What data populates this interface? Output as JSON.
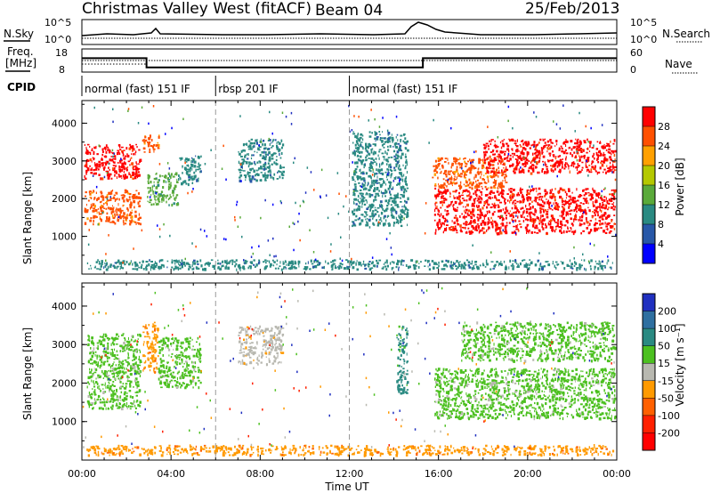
{
  "header": {
    "title": "Christmas Valley West (fitACF)",
    "beam": "Beam 04",
    "date": "25/Feb/2013"
  },
  "panels": {
    "sky_label": "N.Sky",
    "search_label": "N.Search",
    "freq_label_1": "Freq.",
    "freq_label_2": "[MHz]",
    "nave_label": "Nave",
    "cpid_label": "CPID",
    "sky_ticks_left": [
      "10^5",
      "10^0"
    ],
    "sky_ticks_right": [
      "10^5",
      "10^0"
    ],
    "freq_ticks": [
      "18",
      "8"
    ],
    "nave_ticks": [
      "60",
      "0"
    ]
  },
  "cpid": [
    {
      "label": "normal (fast) 151 IF",
      "start": 0,
      "end": 6
    },
    {
      "label": "rbsp 201 IF",
      "start": 6,
      "end": 12
    },
    {
      "label": "normal (fast) 151 IF",
      "start": 12,
      "end": 24
    }
  ],
  "colorbars": {
    "power": {
      "label": "Power [dB]",
      "ticks": [
        "28",
        "24",
        "20",
        "16",
        "12",
        "8",
        "4"
      ],
      "colors": [
        "#0000ff",
        "#2858a8",
        "#2a8a82",
        "#5aaa3a",
        "#b4c800",
        "#ffa000",
        "#ff5000",
        "#ff0000"
      ]
    },
    "velocity": {
      "label": "Velocity [m s⁻¹]",
      "ticks": [
        "200",
        "100",
        "50",
        "15",
        "-15",
        "-50",
        "-100",
        "-200"
      ],
      "colors": [
        "#2030c0",
        "#2e6fa0",
        "#2a8a82",
        "#4cc020",
        "#b8b8b0",
        "#ff9a00",
        "#ff6000",
        "#ff2000",
        "#ff0000"
      ]
    }
  },
  "axes": {
    "y_label": "Slant Range [km]",
    "y_ticks": [
      "4000",
      "3000",
      "2000",
      "1000"
    ],
    "x_label": "Time UT",
    "x_ticks": [
      "00:00",
      "04:00",
      "08:00",
      "12:00",
      "16:00",
      "20:00",
      "00:00"
    ]
  },
  "chart_data": {
    "type": "heatmap",
    "x_unit": "hours UT",
    "y_unit": "km",
    "xlim": [
      0,
      24
    ],
    "ylim": [
      0,
      4600
    ],
    "freq_mhz": [
      {
        "start": 0,
        "end": 2.9,
        "value": 14
      },
      {
        "start": 2.9,
        "end": 15.3,
        "value": 10
      },
      {
        "start": 15.3,
        "end": 24,
        "value": 14
      }
    ],
    "power_regions": [
      {
        "x0": 0.1,
        "x1": 2.6,
        "y0": 2550,
        "y1": 3450,
        "level": "28"
      },
      {
        "x0": 0.1,
        "x1": 2.6,
        "y0": 1350,
        "y1": 2250,
        "level": "24"
      },
      {
        "x0": 2.7,
        "x1": 3.5,
        "y0": 3250,
        "y1": 3700,
        "level": "24"
      },
      {
        "x0": 2.9,
        "x1": 4.3,
        "y0": 1850,
        "y1": 2700,
        "level": "12"
      },
      {
        "x0": 4.3,
        "x1": 5.3,
        "y0": 2400,
        "y1": 3150,
        "level": "8"
      },
      {
        "x0": 7.0,
        "x1": 9.0,
        "y0": 2500,
        "y1": 3600,
        "level": "8"
      },
      {
        "x0": 12.1,
        "x1": 14.6,
        "y0": 1300,
        "y1": 3800,
        "level": "8"
      },
      {
        "x0": 15.8,
        "x1": 23.9,
        "y0": 1100,
        "y1": 2300,
        "level": "28"
      },
      {
        "x0": 15.7,
        "x1": 19.0,
        "y0": 2300,
        "y1": 3100,
        "level": "24"
      },
      {
        "x0": 18.0,
        "x1": 23.9,
        "y0": 2700,
        "y1": 3600,
        "level": "28"
      },
      {
        "x0": 0.2,
        "x1": 23.8,
        "y0": 150,
        "y1": 400,
        "level": "8"
      }
    ],
    "velocity_regions": [
      {
        "x0": 0.2,
        "x1": 2.6,
        "y0": 1350,
        "y1": 3300,
        "level": "15"
      },
      {
        "x0": 2.7,
        "x1": 3.4,
        "y0": 2300,
        "y1": 3600,
        "level": "-50"
      },
      {
        "x0": 3.4,
        "x1": 5.3,
        "y0": 1900,
        "y1": 3200,
        "level": "15"
      },
      {
        "x0": 7.0,
        "x1": 9.0,
        "y0": 2500,
        "y1": 3500,
        "level": "-15"
      },
      {
        "x0": 14.1,
        "x1": 14.6,
        "y0": 1700,
        "y1": 3500,
        "level": "50"
      },
      {
        "x0": 15.8,
        "x1": 23.9,
        "y0": 1100,
        "y1": 2400,
        "level": "15"
      },
      {
        "x0": 17.0,
        "x1": 23.9,
        "y0": 2600,
        "y1": 3600,
        "level": "15"
      },
      {
        "x0": 0.2,
        "x1": 23.8,
        "y0": 150,
        "y1": 400,
        "level": "-50"
      }
    ]
  }
}
